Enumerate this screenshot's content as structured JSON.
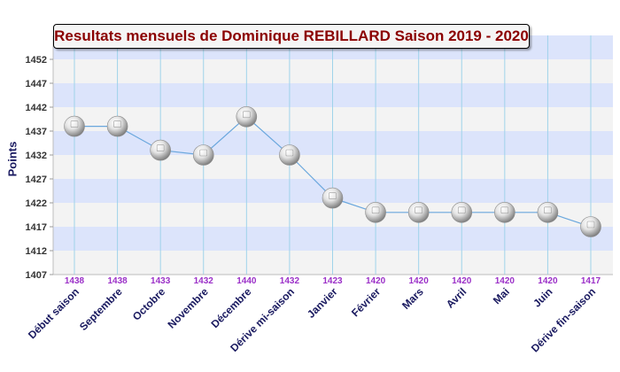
{
  "chart_data": {
    "type": "line",
    "title": "Resultats mensuels de Dominique REBILLARD Saison 2019 - 2020",
    "ylabel": "Points",
    "xlabel": "",
    "categories": [
      "Début saison",
      "Septembre",
      "Octobre",
      "Novembre",
      "Décembre",
      "Dérive mi-saison",
      "Janvier",
      "Février",
      "Mars",
      "Avril",
      "Mai",
      "Juin",
      "Dérive fin-saison"
    ],
    "values": [
      1438,
      1438,
      1433,
      1432,
      1440,
      1432,
      1423,
      1420,
      1420,
      1420,
      1420,
      1420,
      1417
    ],
    "data_labels": [
      "1438",
      "1438",
      "1433",
      "1432",
      "1440",
      "1432",
      "1423",
      "1420",
      "1420",
      "1420",
      "1420",
      "1420",
      "1417"
    ],
    "ylim": [
      1407,
      1457
    ],
    "yticks": [
      1407,
      1412,
      1417,
      1422,
      1427,
      1432,
      1437,
      1442,
      1447,
      1452
    ],
    "grid": true,
    "legend": "none",
    "colors": {
      "line": "#6aa7dd",
      "band_light": "#f3f3f3",
      "band_blue": "#dce4fb",
      "vertical_grid": "#9fd3ea",
      "data_label": "#9b30c8",
      "category_label": "#1a1a60",
      "title": "#8b0000"
    }
  }
}
